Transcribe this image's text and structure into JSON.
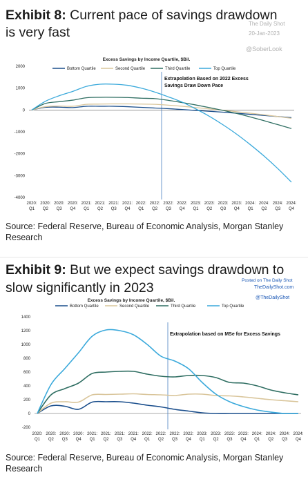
{
  "exhibit8": {
    "title_bold": "Exhibit 8:",
    "title_rest": " Current pace of savings drawdown",
    "title_line2": "is very fast",
    "watermark_shot": "The Daily Shot",
    "watermark_date": "20-Jan-2023",
    "watermark_handle": "@SoberLook",
    "source_line1": "Source: Federal Reserve, Bureau of Economic Analysis, Morgan Stanley",
    "source_line2": "Research"
  },
  "exhibit9": {
    "title_bold": "Exhibit 9:",
    "title_rest": " But we expect savings drawdown to",
    "title_line2": "slow significantly in 2023",
    "watermark_posted": "Posted on The Daily Shot",
    "watermark_site": "TheDailyShot.com",
    "watermark_handle": "@TheDailyShot",
    "source_line1": "Source: Federal Reserve, Bureau of Economic Analysis, Morgan Stanley",
    "source_line2": "Research"
  },
  "chart_data": [
    {
      "type": "line",
      "title": "Excess Savings by Income Quartile, $Bil.",
      "x": [
        "2020: Q1",
        "2020: Q2",
        "2020: Q3",
        "2020: Q4",
        "2021: Q1",
        "2021: Q2",
        "2021: Q3",
        "2021: Q4",
        "2022: Q1",
        "2022: Q2",
        "2022: Q3",
        "2022: Q4",
        "2023: Q1",
        "2023: Q2",
        "2023: Q3",
        "2023: Q4",
        "2024: Q1",
        "2024: Q2",
        "2024: Q3",
        "2024: Q4"
      ],
      "ylim": [
        -4000,
        2000
      ],
      "yticks": [
        2000,
        1000,
        0,
        -1000,
        -2000,
        -3000,
        -4000
      ],
      "legend_position": "top",
      "annotation": [
        "Extrapolation Based on 2022 Excess",
        "Savings Draw Down Pace"
      ],
      "divider_after": "2022: Q2",
      "series": [
        {
          "name": "Bottom Quartile",
          "color": "#1a4e8c",
          "values": [
            0,
            120,
            130,
            110,
            170,
            170,
            170,
            150,
            120,
            90,
            60,
            20,
            -20,
            -60,
            -100,
            -150,
            -200,
            -250,
            -300,
            -350
          ]
        },
        {
          "name": "Second Quartile",
          "color": "#d9c59a",
          "values": [
            0,
            150,
            180,
            170,
            260,
            270,
            280,
            280,
            270,
            260,
            220,
            170,
            110,
            50,
            -10,
            -80,
            -150,
            -220,
            -300,
            -380
          ]
        },
        {
          "name": "Third Quartile",
          "color": "#2f6e62",
          "values": [
            0,
            300,
            380,
            450,
            560,
            580,
            580,
            570,
            540,
            520,
            440,
            340,
            230,
            110,
            -20,
            -160,
            -320,
            -490,
            -670,
            -850
          ]
        },
        {
          "name": "Top Quartile",
          "color": "#3aa9db",
          "values": [
            0,
            400,
            650,
            850,
            1080,
            1180,
            1180,
            1130,
            1000,
            820,
            600,
            360,
            50,
            -290,
            -680,
            -1110,
            -1590,
            -2110,
            -2680,
            -3300
          ]
        }
      ]
    },
    {
      "type": "line",
      "title": "Excess Savings by Income Quartile, $Bil.",
      "x": [
        "2020: Q1",
        "2020: Q2",
        "2020: Q3",
        "2020: Q4",
        "2021: Q1",
        "2021: Q2",
        "2021: Q3",
        "2021: Q4",
        "2022: Q1",
        "2022: Q2",
        "2022: Q3",
        "2022: Q4",
        "2023: Q1",
        "2023: Q2",
        "2023: Q3",
        "2023: Q4",
        "2024: Q1",
        "2024: Q2",
        "2024: Q3",
        "2024: Q4"
      ],
      "ylim": [
        -200,
        1400
      ],
      "yticks": [
        1400,
        1200,
        1000,
        800,
        600,
        400,
        200,
        0,
        -200
      ],
      "legend_position": "top",
      "annotation": [
        "Extrapolation based on MSe for Excess Savings"
      ],
      "divider_after": "2022: Q2",
      "series": [
        {
          "name": "Bottom Quartile",
          "color": "#1a4e8c",
          "values": [
            0,
            110,
            105,
            60,
            165,
            170,
            170,
            150,
            120,
            95,
            60,
            35,
            10,
            0,
            0,
            0,
            0,
            0,
            0,
            0
          ]
        },
        {
          "name": "Second Quartile",
          "color": "#d9c59a",
          "values": [
            0,
            150,
            170,
            165,
            270,
            275,
            280,
            285,
            275,
            270,
            260,
            280,
            280,
            260,
            255,
            240,
            220,
            200,
            185,
            170
          ]
        },
        {
          "name": "Third Quartile",
          "color": "#2f6e62",
          "values": [
            0,
            270,
            360,
            440,
            580,
            600,
            610,
            610,
            570,
            540,
            530,
            550,
            550,
            520,
            450,
            440,
            400,
            340,
            300,
            270
          ]
        },
        {
          "name": "Top Quartile",
          "color": "#3aa9db",
          "values": [
            0,
            420,
            650,
            880,
            1120,
            1210,
            1200,
            1140,
            1000,
            830,
            760,
            650,
            450,
            280,
            170,
            100,
            50,
            20,
            0,
            0
          ]
        }
      ]
    }
  ]
}
